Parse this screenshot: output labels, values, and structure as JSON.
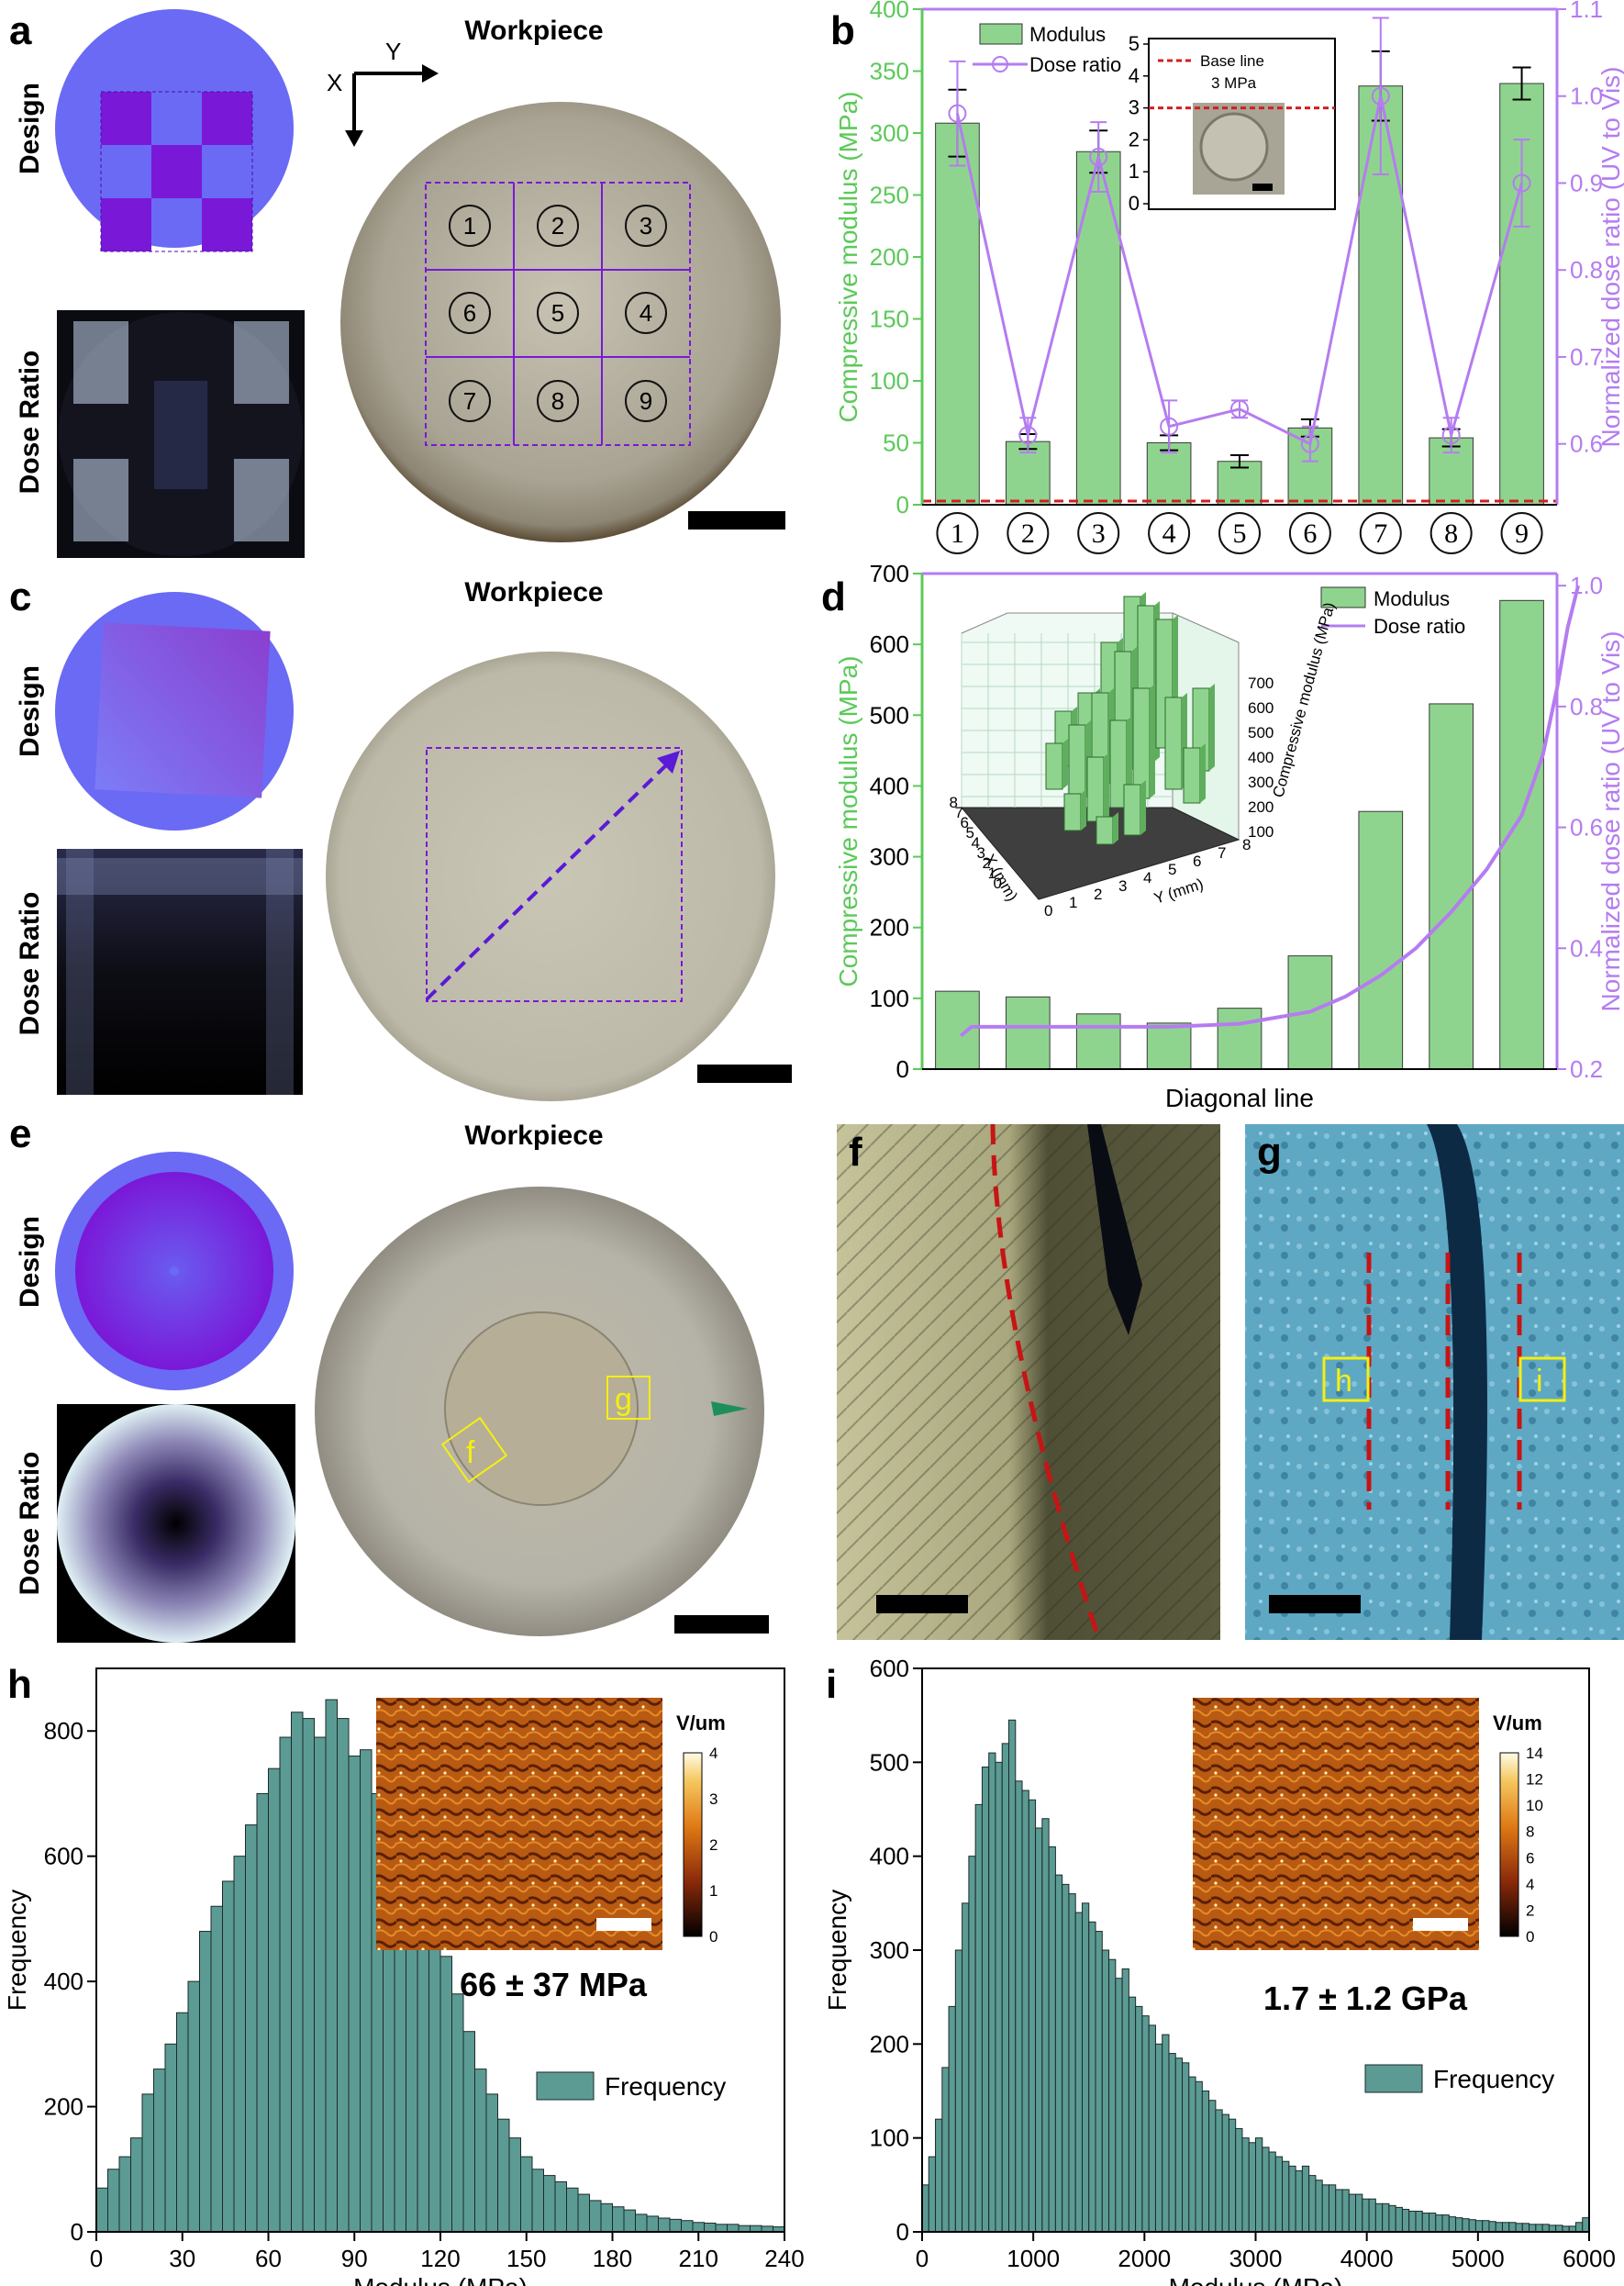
{
  "panels": {
    "a": {
      "label": "a",
      "title": "Workpiece",
      "design_label": "Design",
      "dose_label": "Dose Ratio",
      "axis_x": "X",
      "axis_y": "Y",
      "cells": [
        "1",
        "2",
        "3",
        "6",
        "5",
        "4",
        "7",
        "8",
        "9"
      ]
    },
    "c": {
      "label": "c",
      "title": "Workpiece",
      "design_label": "Design",
      "dose_label": "Dose Ratio"
    },
    "e": {
      "label": "e",
      "title": "Workpiece",
      "design_label": "Design",
      "dose_label": "Dose Ratio",
      "box_f": "f",
      "box_g": "g"
    },
    "f": {
      "label": "f"
    },
    "g": {
      "label": "g",
      "box_h": "h",
      "box_i": "i"
    }
  },
  "colors": {
    "bar_green": "#8fd48e",
    "dose_purple": "#b57cf0",
    "axis_green": "#5cc95a",
    "hist_teal": "#5b9b94",
    "design_blue": "#6a6af5",
    "design_purple": "#7a18d8",
    "red_dash": "#d11f1f"
  },
  "chart_data": [
    {
      "id": "b",
      "type": "bar",
      "label": "b",
      "categories": [
        "1",
        "2",
        "3",
        "4",
        "5",
        "6",
        "7",
        "8",
        "9"
      ],
      "series": [
        {
          "name": "Modulus",
          "values": [
            308,
            51,
            285,
            50,
            35,
            62,
            338,
            54,
            340
          ],
          "errors": [
            27,
            6,
            17,
            6,
            5,
            7,
            28,
            7,
            13
          ]
        },
        {
          "name": "Dose ratio",
          "axis": "right",
          "values": [
            0.98,
            0.61,
            0.93,
            0.62,
            0.64,
            0.6,
            1.0,
            0.61,
            0.9
          ],
          "errors": [
            0.06,
            0.02,
            0.04,
            0.03,
            0.01,
            0.02,
            0.09,
            0.02,
            0.05
          ]
        }
      ],
      "ylabel": "Compressive modulus (MPa)",
      "ylabel_right": "Normalized dose ratio (UV to Vis)",
      "ylim": [
        0,
        400
      ],
      "yticks": [
        "0",
        "50",
        "100",
        "150",
        "200",
        "250",
        "300",
        "350",
        "400"
      ],
      "ylim_right": [
        0.53,
        1.1
      ],
      "yticks_right": [
        "0.6",
        "0.7",
        "0.8",
        "0.9",
        "1.0",
        "1.1"
      ],
      "baseline": 3,
      "inset": {
        "ylim": [
          0,
          5
        ],
        "yticks": [
          "0",
          "1",
          "2",
          "3",
          "4",
          "5"
        ],
        "legend": "Base line",
        "annotation": "3 MPa"
      }
    },
    {
      "id": "d",
      "type": "bar",
      "label": "d",
      "values": [
        110,
        102,
        78,
        65,
        86,
        160,
        364,
        516,
        662
      ],
      "dose_ratio": {
        "x": [
          0.05,
          0.2,
          1.0,
          2.0,
          3.0,
          4.0,
          5.0,
          5.5,
          6.0,
          6.5,
          7.0,
          7.5,
          8.0,
          8.3,
          8.5,
          8.65,
          8.8
        ],
        "y": [
          0.255,
          0.27,
          0.27,
          0.27,
          0.27,
          0.275,
          0.295,
          0.32,
          0.355,
          0.4,
          0.46,
          0.53,
          0.62,
          0.72,
          0.83,
          0.93,
          1.0
        ]
      },
      "xlabel": "Diagonal line",
      "ylabel": "Compressive modulus (MPa)",
      "ylabel_right": "Normalized dose ratio (UV to Vis)",
      "ylim": [
        0,
        700
      ],
      "yticks": [
        "0",
        "100",
        "200",
        "300",
        "400",
        "500",
        "600",
        "700"
      ],
      "ylim_right": [
        0.2,
        1.02
      ],
      "yticks_right": [
        "0.2",
        "0.4",
        "0.6",
        "0.8",
        "1.0"
      ],
      "legend": [
        "Modulus",
        "Dose ratio"
      ],
      "inset": {
        "xlabel": "X (mm)",
        "ylabel": "Y (mm)",
        "zlabel": "Compressive modulus (MPa)",
        "ticks": [
          "0",
          "1",
          "2",
          "3",
          "4",
          "5",
          "6",
          "7",
          "8"
        ],
        "zticks": [
          "100",
          "200",
          "300",
          "400",
          "500",
          "600",
          "700"
        ]
      }
    },
    {
      "id": "h",
      "type": "bar",
      "label": "h",
      "bin_width": 4,
      "values": [
        70,
        100,
        120,
        150,
        220,
        260,
        300,
        350,
        400,
        480,
        520,
        560,
        600,
        650,
        700,
        740,
        790,
        830,
        820,
        790,
        850,
        820,
        760,
        770,
        700,
        660,
        650,
        620,
        580,
        500,
        440,
        380,
        320,
        260,
        220,
        180,
        150,
        120,
        100,
        90,
        80,
        70,
        60,
        50,
        45,
        40,
        35,
        28,
        25,
        22,
        20,
        18,
        15,
        14,
        12,
        12,
        10,
        10,
        9,
        8
      ],
      "xlabel": "Modulus (MPa)",
      "ylabel": "Frequency",
      "xlim": [
        0,
        240
      ],
      "xticks": [
        "0",
        "30",
        "60",
        "90",
        "120",
        "150",
        "180",
        "210",
        "240"
      ],
      "ylim": [
        0,
        900
      ],
      "yticks": [
        "0",
        "200",
        "400",
        "600",
        "800"
      ],
      "annotation": "66 ± 37 MPa",
      "legend": "Frequency",
      "colorbar": {
        "label": "V/um",
        "ticks": [
          "0",
          "1",
          "2",
          "3",
          "4"
        ]
      }
    },
    {
      "id": "i",
      "type": "bar",
      "label": "i",
      "bin_width": 60,
      "values": [
        50,
        80,
        120,
        175,
        240,
        300,
        350,
        400,
        455,
        495,
        510,
        500,
        520,
        545,
        480,
        470,
        460,
        430,
        440,
        410,
        380,
        370,
        360,
        340,
        350,
        330,
        320,
        300,
        290,
        270,
        280,
        250,
        240,
        230,
        220,
        200,
        210,
        190,
        185,
        180,
        165,
        160,
        150,
        140,
        130,
        125,
        120,
        110,
        100,
        95,
        100,
        90,
        85,
        80,
        75,
        70,
        65,
        70,
        60,
        55,
        50,
        50,
        45,
        45,
        40,
        40,
        35,
        35,
        30,
        30,
        28,
        26,
        24,
        22,
        22,
        20,
        20,
        18,
        18,
        16,
        15,
        14,
        13,
        12,
        12,
        11,
        10,
        10,
        10,
        9,
        9,
        8,
        8,
        8,
        7,
        7,
        6,
        6,
        10,
        15
      ],
      "xlabel": "Modulus (MPa)",
      "ylabel": "Frequency",
      "xlim": [
        0,
        6000
      ],
      "xticks": [
        "0",
        "1000",
        "2000",
        "3000",
        "4000",
        "5000",
        "6000"
      ],
      "ylim": [
        0,
        600
      ],
      "yticks": [
        "0",
        "100",
        "200",
        "300",
        "400",
        "500",
        "600"
      ],
      "annotation": "1.7 ± 1.2 GPa",
      "legend": "Frequency",
      "colorbar": {
        "label": "V/um",
        "ticks": [
          "0",
          "2",
          "4",
          "6",
          "8",
          "10",
          "12",
          "14"
        ]
      }
    }
  ]
}
